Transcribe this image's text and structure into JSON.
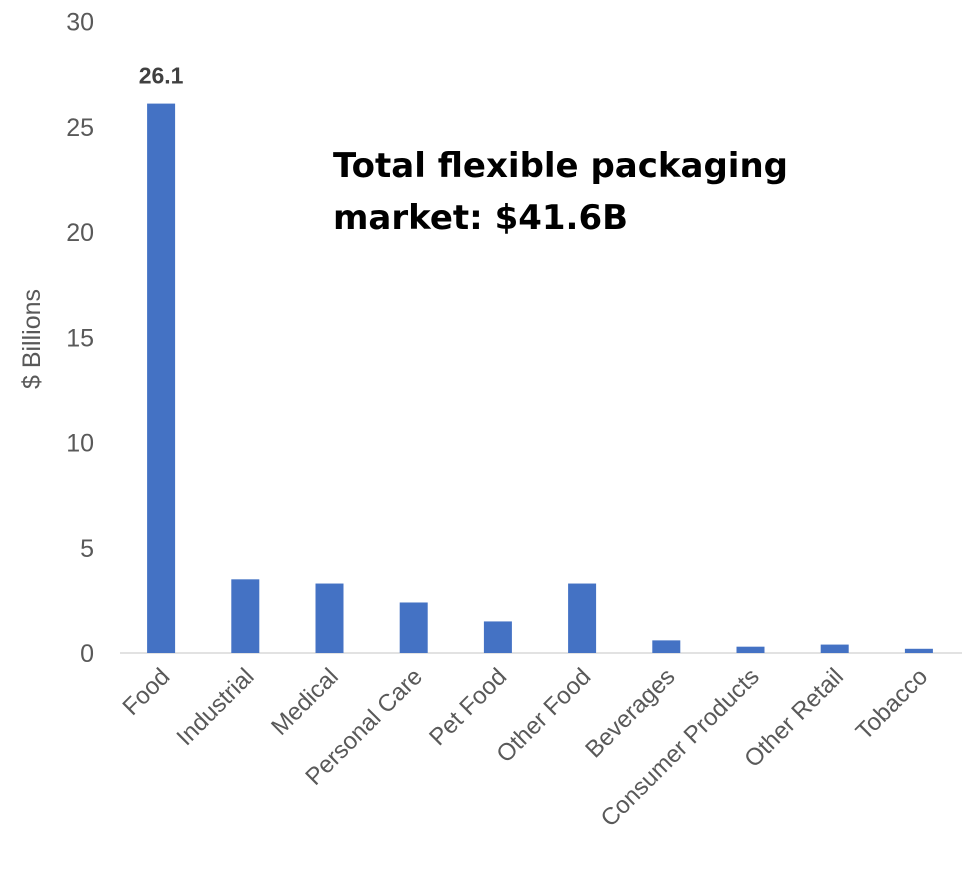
{
  "chart_data": {
    "type": "bar",
    "categories": [
      "Food",
      "Industrial",
      "Medical",
      "Personal Care",
      "Pet Food",
      "Other Food",
      "Beverages",
      "Consumer Products",
      "Other Retail",
      "Tobacco"
    ],
    "values": [
      26.1,
      3.5,
      3.3,
      2.4,
      1.5,
      3.3,
      0.6,
      0.3,
      0.4,
      0.2
    ],
    "data_labels": [
      {
        "index": 0,
        "text": "26.1"
      }
    ],
    "ylabel": "$ Billions",
    "xlabel": "",
    "ylim": [
      0,
      30
    ],
    "yticks": [
      0,
      5,
      10,
      15,
      20,
      25,
      30
    ],
    "grid": false,
    "legend": "none",
    "bar_color": "#4472C4",
    "annotation": {
      "line1": "Total flexible packaging",
      "line2": "market: $41.6B"
    }
  }
}
